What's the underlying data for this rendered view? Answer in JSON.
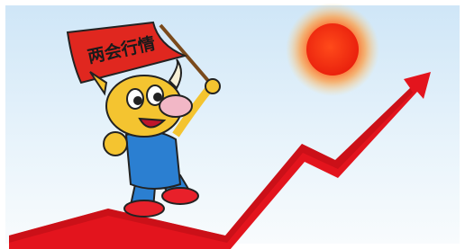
{
  "flag": {
    "text": "两会行情"
  }
}
